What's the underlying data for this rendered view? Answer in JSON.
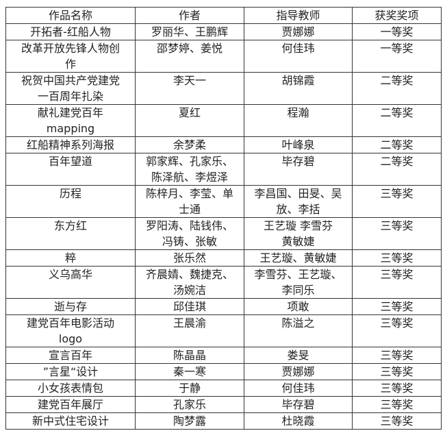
{
  "headers": [
    "作品名称",
    "作者",
    "指导教师",
    "获奖奖项"
  ],
  "rows": [
    {
      "title": "开拓者-红船人物",
      "authors": "罗丽华、王鹏辉",
      "teacher": "贾娜娜",
      "award": "一等奖"
    },
    {
      "title": "改革开放先锋人物创\n作",
      "authors": "邵梦婷、姜悦",
      "teacher": "何佳玮",
      "award": "一等奖"
    },
    {
      "title": "祝贺中国共产党建党\n一百周年扎染",
      "authors": "李天一",
      "teacher": "胡锦霞",
      "award": "二等奖"
    },
    {
      "title": "献礼建党百年\nmapping",
      "authors": "夏红",
      "teacher": "程瀚",
      "award": "二等奖"
    },
    {
      "title": "红船精神系列海报",
      "authors": "余梦柔",
      "teacher": "叶峰泉",
      "award": "二等奖"
    },
    {
      "title": "百年望道",
      "authors": "郭家辉、孔家乐、\n陈泽航、李煜泽",
      "teacher": "毕存碧",
      "award": "二等奖"
    },
    {
      "title": "历程",
      "authors": "陈梓月、李莹、单\n士通",
      "teacher": "李昌国、田旻、吴\n放、李括",
      "award": "三等奖"
    },
    {
      "title": "东方红",
      "authors": "罗阳涛、陆钱伟、\n冯铸、张敏",
      "teacher": "王艺璇 李雪芬\n黄敏婕",
      "award": "三等奖"
    },
    {
      "title": "粹",
      "authors": "张乐然",
      "teacher": "王艺璇、黄敏婕",
      "award": "三等奖"
    },
    {
      "title": "义乌高华",
      "authors": "齐晨婧、魏捷克、\n汤婉洁",
      "teacher": "李雪芬、王艺璇、\n李同乐",
      "award": "三等奖"
    },
    {
      "title": "逝与存",
      "authors": "邱佳琪",
      "teacher": "项敢",
      "award": "三等奖"
    },
    {
      "title": "建党百年电影活动\nlogo",
      "authors": "王晨渝",
      "teacher": "陈溢之",
      "award": "三等奖"
    },
    {
      "title": "宣言百年",
      "authors": "陈晶晶",
      "teacher": "娄旻",
      "award": "三等奖"
    },
    {
      "title": "”言星“设计",
      "authors": "秦一寒",
      "teacher": "贾娜娜",
      "award": "三等奖"
    },
    {
      "title": "小女孩表情包",
      "authors": "于静",
      "teacher": "何佳玮",
      "award": "三等奖"
    },
    {
      "title": "建党百年展厅",
      "authors": "孔家乐",
      "teacher": "毕存碧",
      "award": "三等奖"
    },
    {
      "title": "新中式住宅设计",
      "authors": "陶梦露",
      "teacher": "杜晓霞",
      "award": "三等奖"
    }
  ]
}
